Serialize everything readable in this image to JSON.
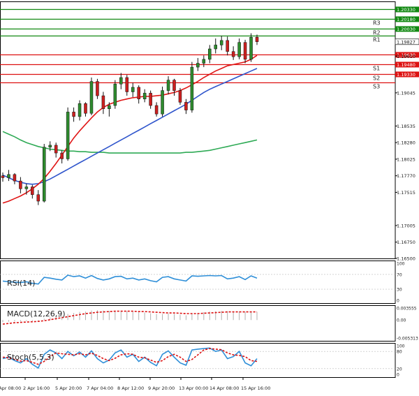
{
  "chart_data": {
    "type": "candlestick",
    "main_price_axis": {
      "ticks": [
        "1.19610",
        "1.19045",
        "1.18535",
        "1.18280",
        "1.18025",
        "1.17770",
        "1.17515",
        "1.17005",
        "1.16750",
        "1.16500"
      ],
      "ylim": [
        1.165,
        1.2045
      ]
    },
    "current_price": "1.19827",
    "colors": {
      "bull": "#2e8b2e",
      "bear": "#cc1f1f",
      "resistance": "#118811",
      "support": "#dd1111",
      "ma_fast": "#e01515",
      "ma_mid": "#2f55cc",
      "ma_slow": "#2eaa55",
      "rsi": "#2f8fd8",
      "macd_hist": "#b0b0b0",
      "macd_signal": "#dd1111",
      "stoch_main": "#2f8fd8",
      "stoch_signal": "#dd1111",
      "last_price_box": "#333333"
    },
    "levels": [
      {
        "label": "",
        "price": "1.20330",
        "kind": "resistance",
        "value": 1.2033
      },
      {
        "label": "R3",
        "price": "1.20180",
        "kind": "resistance",
        "value": 1.2018
      },
      {
        "label": "R2",
        "price": "1.20030",
        "kind": "resistance",
        "value": 1.2003
      },
      {
        "label": "R1",
        "price": "",
        "kind": "resistance",
        "value": 1.1992
      },
      {
        "label": "",
        "price": "1.19630",
        "kind": "support",
        "value": 1.1963
      },
      {
        "label": "S1",
        "price": "1.19480",
        "kind": "support",
        "value": 1.1948
      },
      {
        "label": "S2",
        "price": "1.19330",
        "kind": "support",
        "value": 1.1933
      },
      {
        "label": "S3",
        "price": "",
        "kind": "support",
        "value": 1.192
      }
    ],
    "candles": [
      [
        1.1777,
        1.1782,
        1.1768,
        1.1774
      ],
      [
        1.1774,
        1.1786,
        1.1769,
        1.1779
      ],
      [
        1.1779,
        1.1781,
        1.1764,
        1.1769
      ],
      [
        1.1769,
        1.1775,
        1.175,
        1.1757
      ],
      [
        1.1757,
        1.1765,
        1.1748,
        1.176
      ],
      [
        1.176,
        1.1763,
        1.1742,
        1.1748
      ],
      [
        1.1748,
        1.1755,
        1.1732,
        1.1738
      ],
      [
        1.1738,
        1.1826,
        1.1736,
        1.1821
      ],
      [
        1.1821,
        1.183,
        1.1815,
        1.1824
      ],
      [
        1.1824,
        1.1828,
        1.1805,
        1.1812
      ],
      [
        1.1812,
        1.1816,
        1.1796,
        1.1803
      ],
      [
        1.1803,
        1.1882,
        1.18,
        1.1875
      ],
      [
        1.1875,
        1.1882,
        1.186,
        1.1868
      ],
      [
        1.1868,
        1.1893,
        1.1862,
        1.1888
      ],
      [
        1.1888,
        1.189,
        1.1868,
        1.1873
      ],
      [
        1.1873,
        1.1928,
        1.187,
        1.1922
      ],
      [
        1.1922,
        1.1926,
        1.1895,
        1.19
      ],
      [
        1.19,
        1.1906,
        1.1872,
        1.188
      ],
      [
        1.188,
        1.189,
        1.1868,
        1.1885
      ],
      [
        1.1885,
        1.1924,
        1.188,
        1.1918
      ],
      [
        1.1918,
        1.1935,
        1.191,
        1.1928
      ],
      [
        1.1928,
        1.1932,
        1.19,
        1.1906
      ],
      [
        1.1906,
        1.192,
        1.1898,
        1.1913
      ],
      [
        1.1913,
        1.1916,
        1.1888,
        1.1895
      ],
      [
        1.1895,
        1.191,
        1.189,
        1.1904
      ],
      [
        1.1904,
        1.1908,
        1.188,
        1.1885
      ],
      [
        1.1885,
        1.189,
        1.1868,
        1.1872
      ],
      [
        1.1872,
        1.1914,
        1.1868,
        1.1908
      ],
      [
        1.1908,
        1.193,
        1.1902,
        1.1924
      ],
      [
        1.1924,
        1.1926,
        1.19,
        1.1908
      ],
      [
        1.1908,
        1.1912,
        1.1886,
        1.189
      ],
      [
        1.189,
        1.1895,
        1.1872,
        1.1878
      ],
      [
        1.1878,
        1.1952,
        1.1874,
        1.1944
      ],
      [
        1.1944,
        1.1958,
        1.1938,
        1.195
      ],
      [
        1.195,
        1.1962,
        1.1944,
        1.1956
      ],
      [
        1.1956,
        1.1978,
        1.195,
        1.1972
      ],
      [
        1.1972,
        1.1988,
        1.1965,
        1.1978
      ],
      [
        1.1978,
        1.1992,
        1.197,
        1.1985
      ],
      [
        1.1985,
        1.1991,
        1.1962,
        1.1968
      ],
      [
        1.1968,
        1.1976,
        1.1955,
        1.196
      ],
      [
        1.196,
        1.1988,
        1.1956,
        1.1982
      ],
      [
        1.1982,
        1.1986,
        1.195,
        1.1956
      ],
      [
        1.1956,
        1.1996,
        1.1952,
        1.199
      ],
      [
        1.199,
        1.1994,
        1.1978,
        1.1983
      ]
    ],
    "ma_fast": [
      1.1735,
      1.1738,
      1.1742,
      1.1746,
      1.1751,
      1.1757,
      1.1764,
      1.1773,
      1.1784,
      1.1796,
      1.1809,
      1.1822,
      1.1835,
      1.1846,
      1.1856,
      1.1866,
      1.1875,
      1.1882,
      1.1887,
      1.189,
      1.1893,
      1.1895,
      1.1897,
      1.1898,
      1.1899,
      1.1899,
      1.19,
      1.1901,
      1.1903,
      1.1905,
      1.1908,
      1.1912,
      1.1917,
      1.1922,
      1.1928,
      1.1933,
      1.1938,
      1.1942,
      1.1946,
      1.1948,
      1.195,
      1.1952,
      1.1956,
      1.1962
    ],
    "ma_mid": [
      1.1778,
      1.1774,
      1.177,
      1.1767,
      1.1765,
      1.1764,
      1.1765,
      1.1768,
      1.1772,
      1.1777,
      1.1782,
      1.1787,
      1.1792,
      1.1797,
      1.1802,
      1.1807,
      1.1812,
      1.1817,
      1.1822,
      1.1827,
      1.1832,
      1.1837,
      1.1842,
      1.1847,
      1.1852,
      1.1857,
      1.1862,
      1.1867,
      1.1872,
      1.1877,
      1.1882,
      1.1887,
      1.1893,
      1.1899,
      1.1905,
      1.191,
      1.1914,
      1.1918,
      1.1922,
      1.1926,
      1.193,
      1.1934,
      1.1938,
      1.1942
    ],
    "ma_slow": [
      1.1845,
      1.1841,
      1.1837,
      1.1832,
      1.1828,
      1.1825,
      1.1822,
      1.182,
      1.1818,
      1.1817,
      1.1816,
      1.1815,
      1.1815,
      1.1814,
      1.1814,
      1.1813,
      1.1813,
      1.1813,
      1.1812,
      1.1812,
      1.1812,
      1.1812,
      1.1812,
      1.1812,
      1.1812,
      1.1812,
      1.1812,
      1.1812,
      1.1812,
      1.1812,
      1.1812,
      1.1813,
      1.1813,
      1.1814,
      1.1815,
      1.1816,
      1.1818,
      1.182,
      1.1822,
      1.1824,
      1.1826,
      1.1828,
      1.183,
      1.1832
    ],
    "rsi": {
      "label": "RSI(14)",
      "ticks": [
        "100",
        "70",
        "30",
        "0"
      ],
      "ylim": [
        0,
        100
      ],
      "values": [
        52,
        50,
        49,
        48,
        50,
        46,
        44,
        62,
        60,
        57,
        55,
        68,
        64,
        66,
        60,
        67,
        59,
        55,
        58,
        64,
        65,
        58,
        60,
        55,
        58,
        53,
        50,
        62,
        64,
        58,
        55,
        52,
        66,
        65,
        66,
        67,
        66,
        67,
        58,
        60,
        64,
        56,
        66,
        60
      ]
    },
    "macd": {
      "label": "MACD(12,26,9)",
      "ticks": [
        "0.003555",
        "0.00",
        "-0.005313"
      ],
      "ylim": [
        -0.005313,
        0.003555
      ],
      "histogram": [
        -0.0006,
        -0.0005,
        -0.0004,
        -0.0004,
        -0.0003,
        -0.0003,
        -0.0002,
        0.0004,
        0.0008,
        0.0011,
        0.0013,
        0.0018,
        0.0021,
        0.0024,
        0.0025,
        0.0028,
        0.0029,
        0.0028,
        0.0027,
        0.0027,
        0.0027,
        0.0026,
        0.0025,
        0.0023,
        0.0022,
        0.002,
        0.0018,
        0.0018,
        0.0019,
        0.0018,
        0.0016,
        0.0014,
        0.0018,
        0.0021,
        0.0023,
        0.0025,
        0.0026,
        0.0027,
        0.0026,
        0.0025,
        0.0025,
        0.0024,
        0.0025,
        0.0024
      ],
      "signal": [
        -0.0012,
        -0.001,
        -0.0008,
        -0.0007,
        -0.0006,
        -0.0005,
        -0.0004,
        -0.0002,
        0.0001,
        0.0004,
        0.0007,
        0.001,
        0.0013,
        0.0016,
        0.0019,
        0.0021,
        0.0023,
        0.0024,
        0.0025,
        0.0026,
        0.0026,
        0.0026,
        0.0026,
        0.0025,
        0.0025,
        0.0024,
        0.0023,
        0.0022,
        0.0021,
        0.0021,
        0.002,
        0.0019,
        0.0019,
        0.0019,
        0.002,
        0.0021,
        0.0022,
        0.0023,
        0.0024,
        0.0024,
        0.0024,
        0.0024,
        0.0024,
        0.0024
      ]
    },
    "stoch": {
      "label": "Stoch(5,5,3)",
      "ticks": [
        "100",
        "80",
        "20",
        "0"
      ],
      "ylim": [
        0,
        100
      ],
      "main": [
        55,
        60,
        48,
        40,
        55,
        35,
        22,
        70,
        85,
        75,
        55,
        80,
        65,
        78,
        60,
        82,
        55,
        40,
        50,
        75,
        85,
        60,
        70,
        45,
        60,
        42,
        30,
        70,
        82,
        60,
        40,
        32,
        85,
        88,
        90,
        92,
        80,
        85,
        55,
        62,
        80,
        40,
        30,
        55
      ],
      "signal": [
        60,
        58,
        52,
        46,
        48,
        42,
        35,
        45,
        62,
        75,
        72,
        70,
        68,
        72,
        68,
        74,
        66,
        55,
        48,
        56,
        68,
        72,
        70,
        60,
        58,
        50,
        42,
        48,
        62,
        70,
        60,
        45,
        52,
        68,
        85,
        90,
        88,
        86,
        75,
        68,
        66,
        62,
        48,
        45
      ]
    },
    "x_ticks": [
      "1 Apr 08:00",
      "2 Apr 16:00",
      "5 Apr 20:00",
      "7 Apr 04:00",
      "8 Apr 12:00",
      "9 Apr 20:00",
      "13 Apr 00:00",
      "14 Apr 08:00",
      "15 Apr 16:00"
    ]
  }
}
